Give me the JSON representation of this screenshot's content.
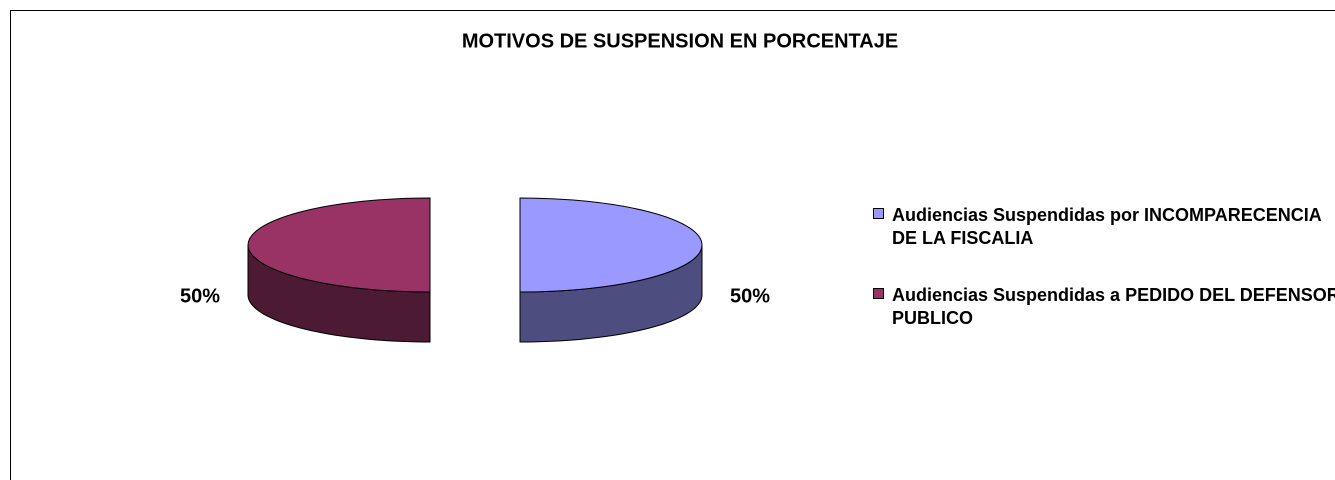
{
  "chart_data": {
    "type": "pie3d",
    "title": "MOTIVOS DE SUSPENSION EN PORCENTAJE",
    "series": [
      {
        "name": "Audiencias Suspendidas por INCOMPARECENCIA DE LA FISCALIA",
        "color": "#9999ff"
      },
      {
        "name": "Audiencias Suspendidas a PEDIDO DEL DEFENSOR PUBLICO",
        "color": "#993366"
      }
    ],
    "values": [
      50,
      50
    ],
    "value_labels": [
      "50%",
      "50%"
    ],
    "legend": "right"
  }
}
